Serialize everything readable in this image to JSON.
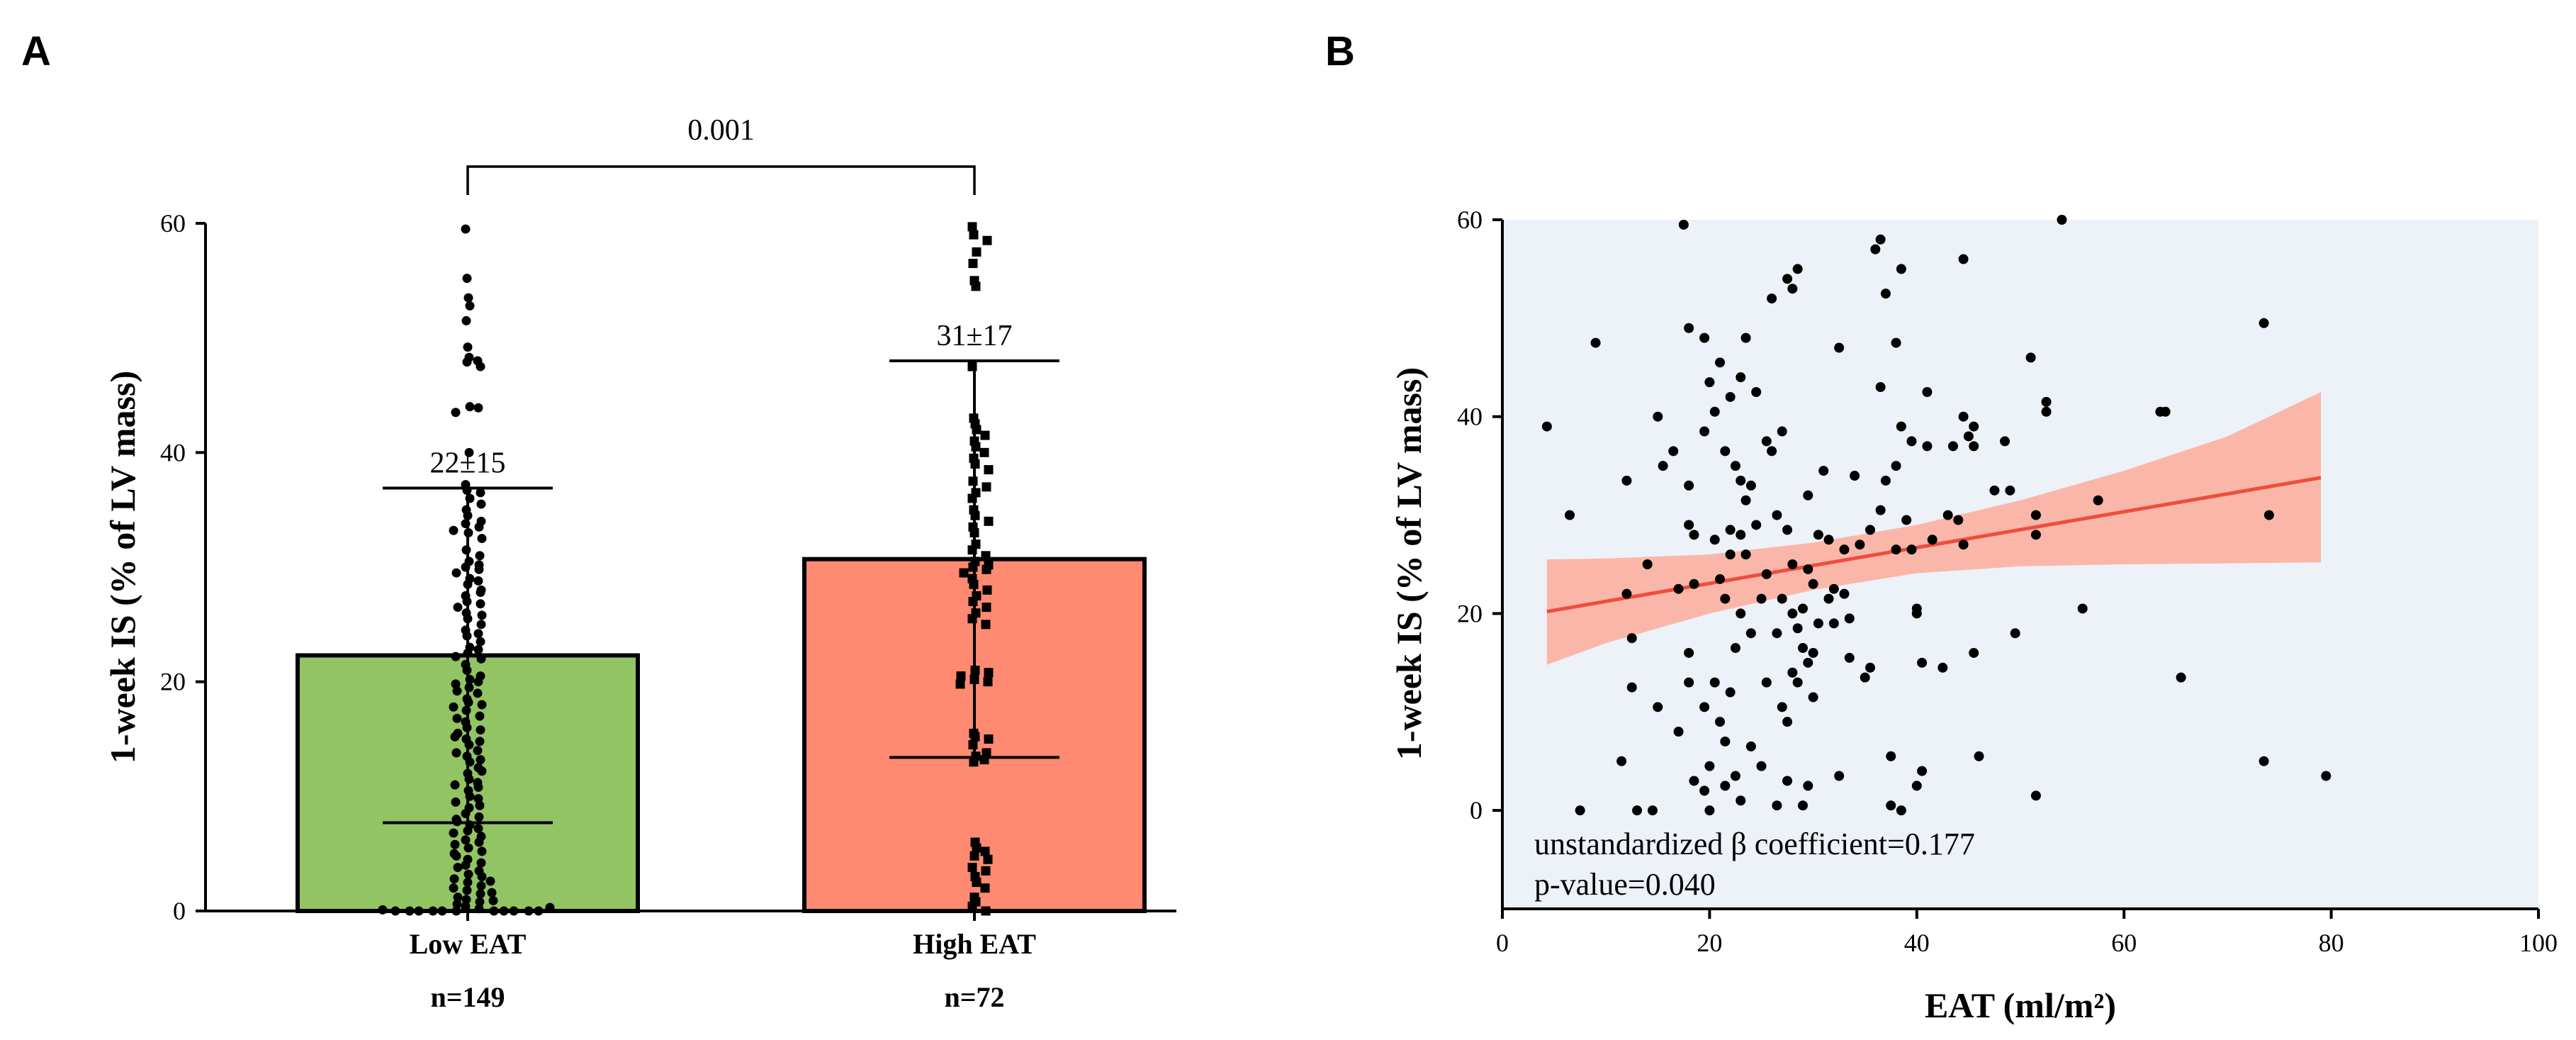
{
  "panels": {
    "a_letter": "A",
    "b_letter": "B"
  },
  "chart_data": [
    {
      "id": "A",
      "type": "bar",
      "ylabel": "1-week IS (% of LV mass)",
      "ylim": [
        0,
        60
      ],
      "yticks": [
        0,
        20,
        40,
        60
      ],
      "categories": [
        "Low EAT",
        "High EAT"
      ],
      "counts": [
        "n=149",
        "n=72"
      ],
      "means": [
        22.3,
        30.7
      ],
      "sd": [
        14.6,
        17.3
      ],
      "annotations": [
        "22±15",
        "31±17"
      ],
      "bar_colors": [
        "#92C464",
        "#FF8A72"
      ],
      "comparison": {
        "label": "0.001",
        "between": [
          0,
          1
        ]
      },
      "points": [
        [
          59.5,
          55.2,
          53.5,
          52.8,
          51.5,
          49.2,
          48.3,
          48.0,
          47.9,
          47.5,
          44.0,
          43.9,
          43.5,
          40.0,
          37.2,
          36.7,
          36.5,
          36.0,
          35.0,
          34.5,
          34.0,
          33.8,
          33.5,
          33.0,
          32.5,
          31.5,
          31.0,
          30.5,
          30.0,
          29.8,
          29.5,
          29.0,
          28.8,
          28.5,
          28.0,
          27.5,
          27.0,
          26.8,
          26.5,
          26.0,
          25.5,
          25.0,
          24.5,
          24.0,
          23.5,
          23.0,
          22.8,
          22.5,
          22.0,
          21.5,
          21.0,
          20.5,
          20.2,
          20.0,
          19.8,
          19.5,
          19.0,
          18.5,
          18.2,
          18.0,
          17.5,
          17.0,
          16.8,
          16.5,
          16.0,
          15.8,
          15.5,
          15.0,
          14.8,
          14.5,
          14.0,
          13.5,
          13.2,
          13.0,
          12.5,
          12.0,
          11.5,
          11.2,
          11.0,
          10.5,
          10.0,
          9.8,
          9.5,
          9.0,
          8.5,
          8.2,
          8.0,
          7.5,
          7.2,
          7.0,
          6.5,
          6.2,
          6.0,
          5.5,
          5.2,
          5.0,
          4.5,
          4.2,
          4.0,
          3.5,
          3.2,
          3.0,
          2.8,
          2.5,
          2.2,
          2.0,
          1.8,
          1.5,
          1.2,
          1.0,
          0.8,
          0.6,
          0.4,
          0.2,
          0.0,
          0.0,
          0.0,
          0.0,
          0.0,
          0.0,
          0.0,
          0.0,
          0.0,
          0.0,
          0.0,
          35.5,
          33.2,
          30.2,
          27.8,
          25.8,
          24.2,
          22.2,
          19.2,
          17.8,
          15.2,
          13.8,
          12.2,
          10.8,
          9.2,
          7.8,
          6.8,
          5.8,
          4.8,
          3.8,
          2.6,
          1.6,
          0.9,
          0.3,
          0.1
        ],
        [
          59.7,
          59.0,
          58.5,
          57.5,
          56.5,
          55.0,
          54.5,
          47.5,
          43.0,
          42.5,
          42.0,
          41.5,
          41.0,
          40.5,
          40.0,
          39.5,
          39.0,
          38.5,
          37.5,
          37.0,
          36.5,
          36.0,
          35.0,
          34.5,
          34.0,
          33.5,
          33.0,
          32.0,
          31.5,
          31.0,
          30.5,
          30.2,
          30.0,
          29.8,
          29.5,
          29.0,
          28.5,
          28.0,
          27.5,
          27.0,
          26.5,
          26.0,
          25.5,
          25.0,
          21.0,
          20.8,
          20.5,
          20.2,
          20.0,
          19.8,
          15.5,
          15.2,
          15.0,
          14.5,
          13.8,
          13.5,
          13.2,
          13.0,
          6.0,
          5.5,
          5.2,
          4.8,
          4.5,
          3.8,
          3.5,
          3.0,
          2.5,
          2.0,
          1.2,
          0.8,
          0.4,
          0.0
        ]
      ]
    },
    {
      "id": "B",
      "type": "scatter",
      "xlabel": "EAT (ml/m²)",
      "ylabel": "1-week IS (% of LV mass)",
      "xlim": [
        0,
        100
      ],
      "ylim": [
        -10,
        60
      ],
      "xticks": [
        0,
        20,
        40,
        60,
        80,
        100
      ],
      "yticks": [
        0,
        20,
        40,
        60
      ],
      "background_color": "#EDF1F8",
      "fit_color": "#F04C3C",
      "ci_color": "#FBB0A0",
      "fit_line": {
        "x": [
          4.3,
          79
        ],
        "y": [
          20.2,
          33.8
        ]
      },
      "ci_band": {
        "x": [
          4.3,
          10,
          20,
          30,
          40,
          50,
          60,
          70,
          79
        ],
        "lower": [
          14.8,
          17.0,
          20.0,
          22.4,
          24.1,
          24.8,
          25.0,
          25.1,
          25.2
        ],
        "upper": [
          25.5,
          25.6,
          26.0,
          27.2,
          29.0,
          31.5,
          34.5,
          38.0,
          42.5
        ]
      },
      "annotations": [
        "unstandardized β coefficient=0.177",
        "p-value=0.040"
      ],
      "points": [
        [
          4.3,
          39.0
        ],
        [
          6.5,
          30.0
        ],
        [
          7.5,
          0.0
        ],
        [
          9.0,
          47.5
        ],
        [
          11.5,
          5.0
        ],
        [
          12.0,
          33.5
        ],
        [
          12.0,
          22.0
        ],
        [
          12.5,
          17.5
        ],
        [
          12.5,
          12.5
        ],
        [
          13.0,
          0.0
        ],
        [
          14.0,
          25.0
        ],
        [
          14.5,
          0.0
        ],
        [
          15.0,
          10.5
        ],
        [
          15.0,
          40.0
        ],
        [
          15.5,
          35.0
        ],
        [
          16.5,
          36.5
        ],
        [
          17.0,
          22.5
        ],
        [
          17.0,
          8.0
        ],
        [
          17.5,
          59.5
        ],
        [
          18.0,
          49.0
        ],
        [
          18.0,
          33.0
        ],
        [
          18.0,
          29.0
        ],
        [
          18.0,
          16.0
        ],
        [
          18.0,
          13.0
        ],
        [
          18.5,
          28.0
        ],
        [
          18.5,
          23.0
        ],
        [
          18.5,
          3.0
        ],
        [
          19.5,
          10.5
        ],
        [
          19.5,
          2.0
        ],
        [
          19.5,
          38.5
        ],
        [
          19.5,
          48.0
        ],
        [
          20.0,
          43.5
        ],
        [
          20.0,
          4.5
        ],
        [
          20.0,
          0.0
        ],
        [
          20.5,
          40.5
        ],
        [
          20.5,
          27.5
        ],
        [
          20.5,
          13.0
        ],
        [
          21.0,
          45.5
        ],
        [
          21.0,
          23.5
        ],
        [
          21.0,
          9.0
        ],
        [
          21.5,
          36.5
        ],
        [
          21.5,
          21.5
        ],
        [
          21.5,
          7.0
        ],
        [
          21.5,
          2.5
        ],
        [
          22.0,
          42.0
        ],
        [
          22.0,
          28.5
        ],
        [
          22.0,
          26.0
        ],
        [
          22.0,
          12.0
        ],
        [
          22.5,
          35.0
        ],
        [
          22.5,
          16.5
        ],
        [
          22.5,
          3.5
        ],
        [
          23.0,
          44.0
        ],
        [
          23.0,
          33.5
        ],
        [
          23.0,
          28.0
        ],
        [
          23.0,
          20.0
        ],
        [
          23.0,
          1.0
        ],
        [
          23.5,
          48.0
        ],
        [
          23.5,
          31.5
        ],
        [
          23.5,
          26.0
        ],
        [
          24.0,
          33.0
        ],
        [
          24.0,
          18.0
        ],
        [
          24.0,
          6.5
        ],
        [
          24.5,
          42.5
        ],
        [
          24.5,
          29.0
        ],
        [
          25.0,
          21.5
        ],
        [
          25.0,
          4.5
        ],
        [
          25.5,
          37.5
        ],
        [
          25.5,
          24.0
        ],
        [
          25.5,
          13.0
        ],
        [
          26.0,
          52.0
        ],
        [
          26.0,
          36.5
        ],
        [
          26.5,
          30.0
        ],
        [
          26.5,
          18.0
        ],
        [
          26.5,
          0.5
        ],
        [
          27.0,
          10.5
        ],
        [
          27.0,
          38.5
        ],
        [
          27.0,
          21.5
        ],
        [
          27.5,
          54.0
        ],
        [
          27.5,
          28.5
        ],
        [
          27.5,
          9.0
        ],
        [
          27.5,
          3.0
        ],
        [
          28.0,
          53.0
        ],
        [
          28.0,
          25.0
        ],
        [
          28.0,
          20.0
        ],
        [
          28.0,
          14.0
        ],
        [
          28.5,
          55.0
        ],
        [
          28.5,
          18.5
        ],
        [
          28.5,
          13.0
        ],
        [
          29.0,
          20.5
        ],
        [
          29.0,
          16.5
        ],
        [
          29.0,
          0.5
        ],
        [
          29.5,
          32.0
        ],
        [
          29.5,
          24.5
        ],
        [
          29.5,
          15.0
        ],
        [
          29.5,
          2.5
        ],
        [
          30.0,
          23.0
        ],
        [
          30.0,
          16.0
        ],
        [
          30.0,
          11.5
        ],
        [
          30.5,
          19.0
        ],
        [
          30.5,
          28.0
        ],
        [
          31.0,
          34.5
        ],
        [
          31.5,
          27.5
        ],
        [
          31.5,
          21.5
        ],
        [
          32.0,
          19.0
        ],
        [
          32.0,
          22.5
        ],
        [
          32.5,
          47.0
        ],
        [
          32.5,
          3.5
        ],
        [
          33.0,
          26.5
        ],
        [
          33.0,
          22.0
        ],
        [
          33.5,
          19.5
        ],
        [
          33.5,
          15.5
        ],
        [
          34.0,
          34.0
        ],
        [
          34.5,
          27.0
        ],
        [
          35.0,
          13.5
        ],
        [
          35.5,
          28.5
        ],
        [
          35.5,
          14.5
        ],
        [
          36.0,
          57.0
        ],
        [
          36.5,
          58.0
        ],
        [
          36.5,
          43.0
        ],
        [
          36.5,
          30.5
        ],
        [
          37.0,
          52.5
        ],
        [
          37.0,
          33.5
        ],
        [
          37.5,
          5.5
        ],
        [
          37.5,
          0.5
        ],
        [
          38.0,
          47.5
        ],
        [
          38.0,
          35.0
        ],
        [
          38.0,
          26.5
        ],
        [
          38.5,
          55.0
        ],
        [
          38.5,
          39.0
        ],
        [
          38.5,
          0.0
        ],
        [
          39.0,
          29.5
        ],
        [
          39.5,
          37.5
        ],
        [
          39.5,
          26.5
        ],
        [
          40.0,
          20.0
        ],
        [
          40.0,
          2.5
        ],
        [
          40.0,
          20.5
        ],
        [
          40.5,
          15.0
        ],
        [
          40.5,
          4.0
        ],
        [
          41.0,
          42.5
        ],
        [
          41.0,
          37.0
        ],
        [
          41.5,
          27.5
        ],
        [
          42.5,
          14.5
        ],
        [
          43.0,
          30.0
        ],
        [
          43.5,
          37.0
        ],
        [
          44.0,
          29.5
        ],
        [
          44.5,
          40.0
        ],
        [
          44.5,
          56.0
        ],
        [
          44.5,
          27.0
        ],
        [
          45.0,
          38.0
        ],
        [
          45.5,
          39.0
        ],
        [
          45.5,
          37.0
        ],
        [
          45.5,
          16.0
        ],
        [
          46.0,
          5.5
        ],
        [
          47.5,
          32.5
        ],
        [
          48.5,
          37.5
        ],
        [
          49.0,
          32.5
        ],
        [
          49.5,
          18.0
        ],
        [
          51.0,
          46.0
        ],
        [
          51.5,
          30.0
        ],
        [
          51.5,
          28.0
        ],
        [
          51.5,
          1.5
        ],
        [
          52.5,
          41.5
        ],
        [
          52.5,
          40.5
        ],
        [
          54.0,
          60.0
        ],
        [
          56.0,
          20.5
        ],
        [
          57.5,
          31.5
        ],
        [
          63.5,
          40.5
        ],
        [
          64.0,
          40.5
        ],
        [
          65.5,
          13.5
        ],
        [
          73.5,
          5.0
        ],
        [
          73.5,
          49.5
        ],
        [
          74.0,
          30.0
        ],
        [
          79.5,
          3.5
        ]
      ]
    }
  ]
}
